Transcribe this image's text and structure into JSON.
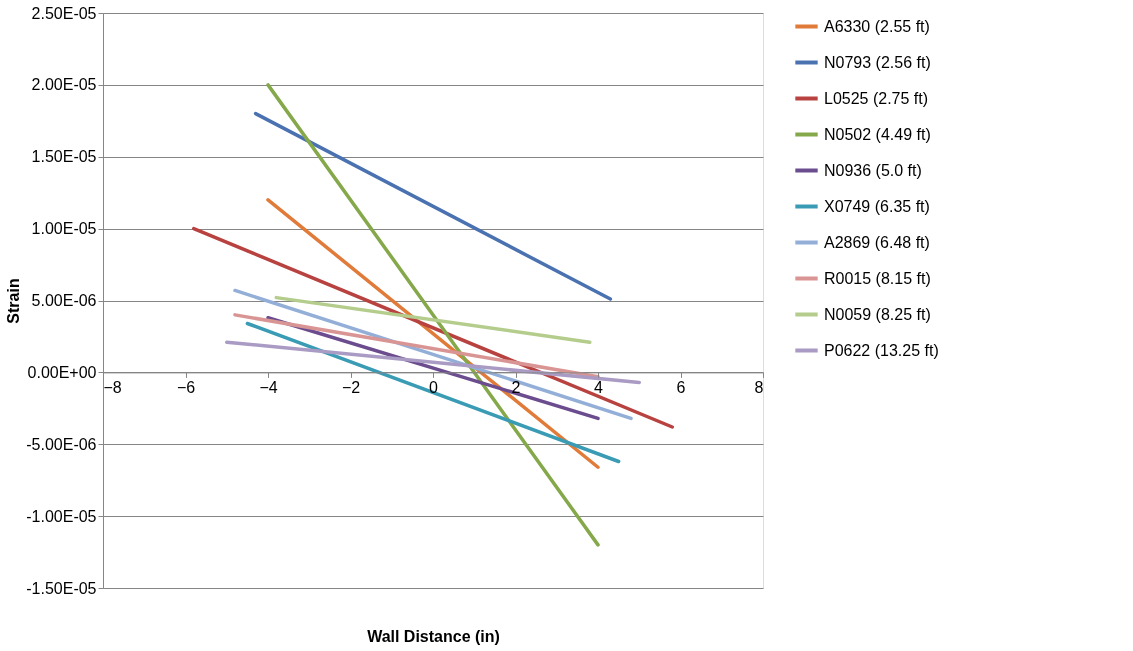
{
  "chart_data": {
    "type": "line",
    "xlabel": "Wall Distance (in)",
    "ylabel": "Strain",
    "xlim": [
      -8,
      8
    ],
    "xticks": [
      -8,
      -6,
      -4,
      -2,
      0,
      2,
      4,
      6,
      8
    ],
    "ylim": [
      -1.5e-05,
      2.5e-05
    ],
    "yticks": [
      {
        "value": -1.5e-05,
        "label": "-1.50E-05"
      },
      {
        "value": -1e-05,
        "label": "-1.00E-05"
      },
      {
        "value": -5e-06,
        "label": "-5.00E-06"
      },
      {
        "value": 0,
        "label": "0.00E+00"
      },
      {
        "value": 5e-06,
        "label": "5.00E-06"
      },
      {
        "value": 1e-05,
        "label": "1.00E-05"
      },
      {
        "value": 1.5e-05,
        "label": "1.50E-05"
      },
      {
        "value": 2e-05,
        "label": "2.00E-05"
      },
      {
        "value": 2.5e-05,
        "label": "2.50E-05"
      }
    ],
    "grid": "y",
    "legend": "right",
    "marker": "none",
    "line_style": "solid",
    "series": [
      {
        "name": "A6330 (2.55 ft)",
        "color": "#e07b39",
        "x": [
          -4.0,
          4.0
        ],
        "values": [
          1.2e-05,
          -6.6e-06
        ]
      },
      {
        "name": "N0793 (2.56 ft)",
        "color": "#4a72b0",
        "x": [
          -4.3,
          4.3
        ],
        "values": [
          1.8e-05,
          5.1e-06
        ]
      },
      {
        "name": "L0525 (2.75 ft)",
        "color": "#b8423f",
        "x": [
          -5.8,
          5.8
        ],
        "values": [
          1e-05,
          -3.8e-06
        ]
      },
      {
        "name": "N0502 (4.49 ft)",
        "color": "#84a84a",
        "x": [
          -4.0,
          4.0
        ],
        "values": [
          2e-05,
          -1.2e-05
        ]
      },
      {
        "name": "N0936 (5.0 ft)",
        "color": "#6b4c8e",
        "x": [
          -4.0,
          4.0
        ],
        "values": [
          3.8e-06,
          -3.2e-06
        ]
      },
      {
        "name": "X0749 (6.35 ft)",
        "color": "#3a9bb5",
        "x": [
          -4.5,
          4.5
        ],
        "values": [
          3.4e-06,
          -6.2e-06
        ]
      },
      {
        "name": "A2869 (6.48 ft)",
        "color": "#93afd8",
        "x": [
          -4.8,
          4.8
        ],
        "values": [
          5.7e-06,
          -3.2e-06
        ]
      },
      {
        "name": "R0015 (8.15 ft)",
        "color": "#d99594",
        "x": [
          -4.8,
          4.0
        ],
        "values": [
          4e-06,
          -3e-07
        ]
      },
      {
        "name": "N0059 (8.25 ft)",
        "color": "#b4cd8c",
        "x": [
          -3.8,
          3.8
        ],
        "values": [
          5.2e-06,
          2.1e-06
        ]
      },
      {
        "name": "P0622 (13.25 ft)",
        "color": "#a99bc4",
        "x": [
          -5.0,
          5.0
        ],
        "values": [
          2.1e-06,
          -7e-07
        ]
      }
    ]
  }
}
